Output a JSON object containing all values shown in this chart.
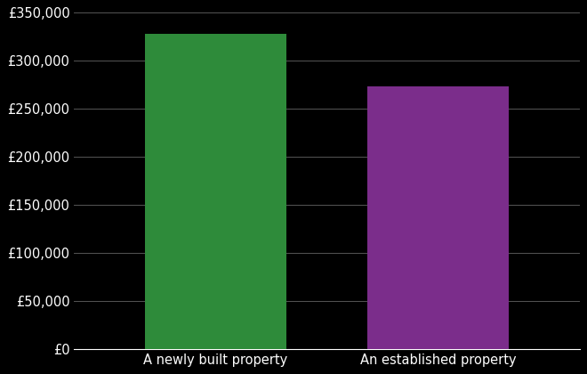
{
  "categories": [
    "A newly built property",
    "An established property"
  ],
  "values": [
    328000,
    273000
  ],
  "bar_colors": [
    "#2e8b3a",
    "#7b2d8b"
  ],
  "background_color": "#000000",
  "text_color": "#ffffff",
  "grid_color": "#555555",
  "ylim": [
    0,
    350000
  ],
  "ytick_step": 50000,
  "bar_width": 0.28,
  "x_positions": [
    0.28,
    0.72
  ],
  "xlim": [
    0,
    1
  ],
  "figsize": [
    6.6,
    4.2
  ],
  "dpi": 100,
  "tick_fontsize": 10.5,
  "label_fontsize": 10.5
}
